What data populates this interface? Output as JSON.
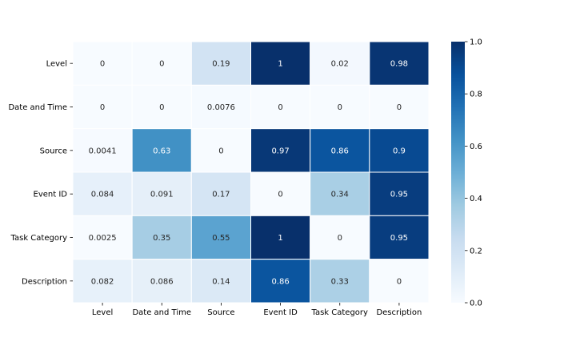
{
  "chart_data": {
    "type": "heatmap",
    "title": "",
    "xlabel": "",
    "ylabel": "",
    "x_categories": [
      "Level",
      "Date and Time",
      "Source",
      "Event ID",
      "Task Category",
      "Description"
    ],
    "y_categories": [
      "Level",
      "Date and Time",
      "Source",
      "Event ID",
      "Task Category",
      "Description"
    ],
    "values": [
      [
        0,
        0,
        0.19,
        1,
        0.02,
        0.98
      ],
      [
        0,
        0,
        0.0076,
        0,
        0,
        0
      ],
      [
        0.0041,
        0.63,
        0,
        0.97,
        0.86,
        0.9
      ],
      [
        0.084,
        0.091,
        0.17,
        0,
        0.34,
        0.95
      ],
      [
        0.0025,
        0.35,
        0.55,
        1,
        0,
        0.95
      ],
      [
        0.082,
        0.086,
        0.14,
        0.86,
        0.33,
        0
      ]
    ],
    "cell_labels": [
      [
        "0",
        "0",
        "0.19",
        "1",
        "0.02",
        "0.98"
      ],
      [
        "0",
        "0",
        "0.0076",
        "0",
        "0",
        "0"
      ],
      [
        "0.0041",
        "0.63",
        "0",
        "0.97",
        "0.86",
        "0.9"
      ],
      [
        "0.084",
        "0.091",
        "0.17",
        "0",
        "0.34",
        "0.95"
      ],
      [
        "0.0025",
        "0.35",
        "0.55",
        "1",
        "0",
        "0.95"
      ],
      [
        "0.082",
        "0.086",
        "0.14",
        "0.86",
        "0.33",
        "0"
      ]
    ],
    "colormap": "Blues",
    "colorbar": {
      "range": [
        0,
        1
      ],
      "ticks": [
        0,
        0.2,
        0.4,
        0.6,
        0.8,
        1
      ],
      "tick_labels": [
        "0.0",
        "0.2",
        "0.4",
        "0.6",
        "0.8",
        "1.0"
      ]
    },
    "cell_border_color": "#ffffff",
    "grid": false,
    "legend": "colorbar-right"
  }
}
